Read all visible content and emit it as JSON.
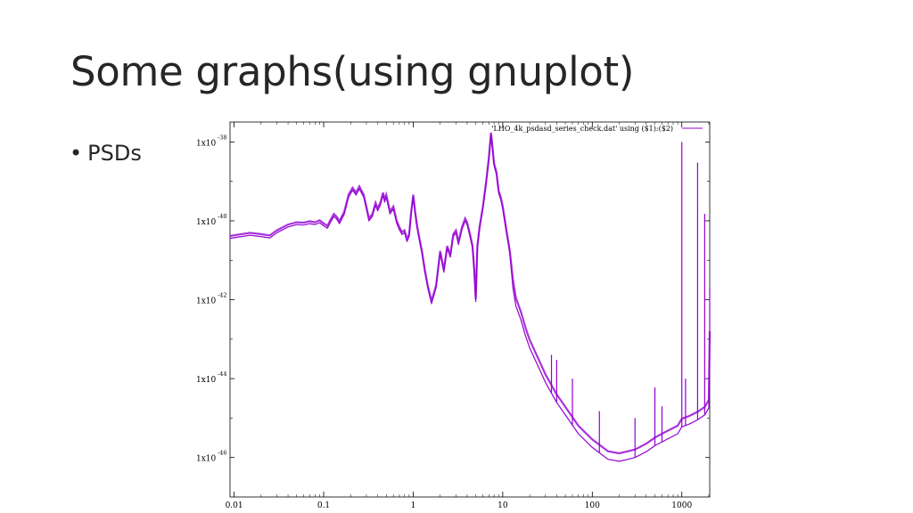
{
  "slide": {
    "title": "Some graphs(using gnuplot)",
    "bullets": [
      "PSDs"
    ]
  },
  "chart_data": {
    "type": "line",
    "title": "",
    "xlabel": "",
    "ylabel": "",
    "xscale": "log",
    "yscale": "log",
    "xlim": [
      0.009,
      2048
    ],
    "ylim": [
      1e-47,
      3.2e-38
    ],
    "x_ticks": [
      "0.01",
      "0.1",
      "1",
      "10",
      "100",
      "1000"
    ],
    "y_ticks": [
      {
        "base": "1x10",
        "exp": "-38"
      },
      {
        "base": "1x10",
        "exp": "-40"
      },
      {
        "base": "1x10",
        "exp": "-42"
      },
      {
        "base": "1x10",
        "exp": "-44"
      },
      {
        "base": "1x10",
        "exp": "-46"
      }
    ],
    "grid": false,
    "legend": "top-right",
    "series": [
      {
        "name": "'LHO_4k_psdasd_series_check.dat' using ($1):($2)",
        "color": "#9400d3",
        "points": [
          [
            0.009,
            3.6e-41
          ],
          [
            0.012,
            4e-41
          ],
          [
            0.015,
            4.3e-41
          ],
          [
            0.02,
            4e-41
          ],
          [
            0.025,
            3.7e-41
          ],
          [
            0.03,
            5e-41
          ],
          [
            0.04,
            7e-41
          ],
          [
            0.05,
            8e-41
          ],
          [
            0.06,
            7.8e-41
          ],
          [
            0.07,
            8.5e-41
          ],
          [
            0.08,
            8e-41
          ],
          [
            0.09,
            9e-41
          ],
          [
            0.1,
            7.5e-41
          ],
          [
            0.11,
            6.5e-41
          ],
          [
            0.12,
            9.5e-41
          ],
          [
            0.13,
            1.3e-40
          ],
          [
            0.14,
            1.1e-40
          ],
          [
            0.15,
            8.5e-41
          ],
          [
            0.17,
            1.5e-40
          ],
          [
            0.19,
            4e-40
          ],
          [
            0.21,
            6e-40
          ],
          [
            0.23,
            4.5e-40
          ],
          [
            0.25,
            6.5e-40
          ],
          [
            0.28,
            4e-40
          ],
          [
            0.3,
            2e-40
          ],
          [
            0.32,
            1e-40
          ],
          [
            0.35,
            1.3e-40
          ],
          [
            0.38,
            2.5e-40
          ],
          [
            0.4,
            1.8e-40
          ],
          [
            0.43,
            2.5e-40
          ],
          [
            0.46,
            4.5e-40
          ],
          [
            0.48,
            3e-40
          ],
          [
            0.5,
            4e-40
          ],
          [
            0.55,
            1.5e-40
          ],
          [
            0.6,
            2e-40
          ],
          [
            0.65,
            9e-41
          ],
          [
            0.7,
            6e-41
          ],
          [
            0.75,
            4.5e-41
          ],
          [
            0.8,
            5e-41
          ],
          [
            0.85,
            3e-41
          ],
          [
            0.9,
            4e-41
          ],
          [
            0.95,
            1.5e-40
          ],
          [
            1.0,
            4e-40
          ],
          [
            1.05,
            1.5e-40
          ],
          [
            1.1,
            7e-41
          ],
          [
            1.15,
            4e-41
          ],
          [
            1.25,
            1.5e-41
          ],
          [
            1.35,
            5e-42
          ],
          [
            1.45,
            2e-42
          ],
          [
            1.6,
            8e-43
          ],
          [
            1.8,
            2e-42
          ],
          [
            2.0,
            1.5e-41
          ],
          [
            2.2,
            5e-42
          ],
          [
            2.4,
            2e-41
          ],
          [
            2.6,
            1.2e-41
          ],
          [
            2.8,
            4e-41
          ],
          [
            3.0,
            5e-41
          ],
          [
            3.2,
            2.5e-41
          ],
          [
            3.5,
            6e-41
          ],
          [
            3.8,
            1e-40
          ],
          [
            4.0,
            8e-41
          ],
          [
            4.3,
            4e-41
          ],
          [
            4.6,
            2e-41
          ],
          [
            4.8,
            5e-42
          ],
          [
            5.0,
            9e-43
          ],
          [
            5.2,
            2e-41
          ],
          [
            5.5,
            6e-41
          ],
          [
            6.0,
            2e-40
          ],
          [
            6.5,
            8e-40
          ],
          [
            7.0,
            3.5e-39
          ],
          [
            7.4,
            1.5e-38
          ],
          [
            7.7,
            6e-39
          ],
          [
            8.0,
            2.5e-39
          ],
          [
            8.5,
            1.5e-39
          ],
          [
            9.0,
            5e-40
          ],
          [
            9.5,
            3.5e-40
          ],
          [
            10,
            2e-40
          ],
          [
            11,
            5e-41
          ],
          [
            12,
            1.5e-41
          ],
          [
            13,
            2e-42
          ],
          [
            14,
            7e-43
          ],
          [
            16,
            3e-43
          ],
          [
            18,
            1.2e-43
          ],
          [
            20,
            6e-44
          ],
          [
            25,
            2e-44
          ],
          [
            30,
            8e-45
          ],
          [
            40,
            2.5e-45
          ],
          [
            50,
            1.2e-45
          ],
          [
            70,
            4e-46
          ],
          [
            100,
            1.8e-46
          ],
          [
            150,
            9e-47
          ],
          [
            200,
            8e-47
          ],
          [
            250,
            9e-47
          ],
          [
            300,
            1e-46
          ],
          [
            400,
            1.4e-46
          ],
          [
            500,
            2e-46
          ],
          [
            700,
            3e-46
          ],
          [
            900,
            4e-46
          ],
          [
            1000,
            6e-46
          ],
          [
            1200,
            7e-46
          ],
          [
            1500,
            9e-46
          ],
          [
            1800,
            1.2e-45
          ],
          [
            2000,
            1.8e-45
          ],
          [
            2048,
            1e-43
          ]
        ],
        "spikes": [
          [
            1000,
            1e-38
          ],
          [
            1500,
            3e-39
          ],
          [
            1800,
            1.5e-40
          ],
          [
            2047,
            2e-42
          ],
          [
            35,
            4e-44
          ],
          [
            40,
            3e-44
          ],
          [
            60,
            1e-44
          ],
          [
            120,
            1.5e-45
          ],
          [
            300,
            1e-45
          ],
          [
            500,
            6e-45
          ],
          [
            600,
            2e-45
          ],
          [
            1100,
            1e-44
          ]
        ]
      }
    ]
  }
}
